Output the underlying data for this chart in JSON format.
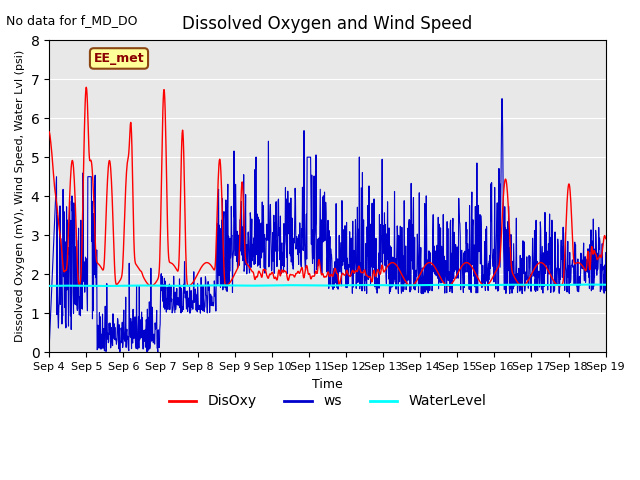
{
  "title": "Dissolved Oxygen and Wind Speed",
  "top_left_text": "No data for f_MD_DO",
  "station_label": "EE_met",
  "ylabel": "Dissolved Oxygen (mV), Wind Speed, Water Lvl (psi)",
  "xlabel": "Time",
  "ylim": [
    0.0,
    8.0
  ],
  "yticks": [
    0.0,
    1.0,
    2.0,
    3.0,
    4.0,
    5.0,
    6.0,
    7.0,
    8.0
  ],
  "xtick_labels": [
    "Sep 4",
    "Sep 5",
    "Sep 6",
    "Sep 7",
    "Sep 8",
    "Sep 9",
    "Sep 10",
    "Sep 11",
    "Sep 12",
    "Sep 13",
    "Sep 14",
    "Sep 15",
    "Sep 16",
    "Sep 17",
    "Sep 18",
    "Sep 19"
  ],
  "disoxy_color": "#FF0000",
  "ws_color": "#0000CC",
  "waterlevel_color": "#00FFFF",
  "bg_color": "#E8E8E8",
  "legend_entries": [
    "DisOxy",
    "ws",
    "WaterLevel"
  ],
  "station_box_facecolor": "#FFFF99",
  "station_box_edgecolor": "#8B4513"
}
